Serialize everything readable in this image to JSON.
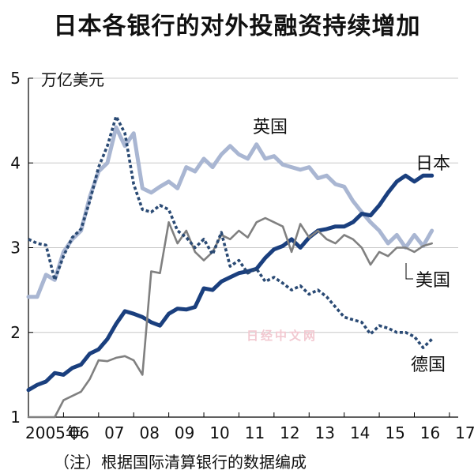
{
  "title": "日本各银行的对外投融资持续增加",
  "note": "（注）根据国际清算银行的数据编成",
  "watermark": "日经中文网",
  "chart_data": {
    "type": "line",
    "ylabel": "万亿美元",
    "ylim": [
      1,
      5
    ],
    "yticks": [
      "1",
      "2",
      "3",
      "4",
      "5"
    ],
    "xlim": [
      2005.0,
      2017.25
    ],
    "xticks": [
      {
        "x": 2005,
        "label": "2005年"
      },
      {
        "x": 2006,
        "label": "06"
      },
      {
        "x": 2007,
        "label": "07"
      },
      {
        "x": 2008,
        "label": "08"
      },
      {
        "x": 2009,
        "label": "09"
      },
      {
        "x": 2010,
        "label": "10"
      },
      {
        "x": 2011,
        "label": "11"
      },
      {
        "x": 2012,
        "label": "12"
      },
      {
        "x": 2013,
        "label": "13"
      },
      {
        "x": 2014,
        "label": "14"
      },
      {
        "x": 2015,
        "label": "15"
      },
      {
        "x": 2016,
        "label": "16"
      },
      {
        "x": 2017,
        "label": "17"
      }
    ],
    "series": [
      {
        "name": "英国",
        "color": "#a9b6d2",
        "style": "thick",
        "points": [
          [
            2005.0,
            2.42
          ],
          [
            2005.25,
            2.42
          ],
          [
            2005.5,
            2.68
          ],
          [
            2005.75,
            2.62
          ],
          [
            2006.0,
            2.95
          ],
          [
            2006.25,
            3.1
          ],
          [
            2006.5,
            3.2
          ],
          [
            2006.75,
            3.6
          ],
          [
            2007.0,
            3.9
          ],
          [
            2007.25,
            4.0
          ],
          [
            2007.5,
            4.42
          ],
          [
            2007.75,
            4.2
          ],
          [
            2008.0,
            4.35
          ],
          [
            2008.25,
            3.7
          ],
          [
            2008.5,
            3.65
          ],
          [
            2008.75,
            3.72
          ],
          [
            2009.0,
            3.78
          ],
          [
            2009.25,
            3.7
          ],
          [
            2009.5,
            3.95
          ],
          [
            2009.75,
            3.9
          ],
          [
            2010.0,
            4.05
          ],
          [
            2010.25,
            3.95
          ],
          [
            2010.5,
            4.1
          ],
          [
            2010.75,
            4.2
          ],
          [
            2011.0,
            4.1
          ],
          [
            2011.25,
            4.05
          ],
          [
            2011.5,
            4.22
          ],
          [
            2011.75,
            4.05
          ],
          [
            2012.0,
            4.08
          ],
          [
            2012.25,
            3.98
          ],
          [
            2012.5,
            3.95
          ],
          [
            2012.75,
            3.92
          ],
          [
            2013.0,
            3.95
          ],
          [
            2013.25,
            3.82
          ],
          [
            2013.5,
            3.85
          ],
          [
            2013.75,
            3.75
          ],
          [
            2014.0,
            3.72
          ],
          [
            2014.25,
            3.55
          ],
          [
            2014.5,
            3.42
          ],
          [
            2014.75,
            3.3
          ],
          [
            2015.0,
            3.2
          ],
          [
            2015.25,
            3.05
          ],
          [
            2015.5,
            3.15
          ],
          [
            2015.75,
            3.0
          ],
          [
            2016.0,
            3.15
          ],
          [
            2016.25,
            3.02
          ],
          [
            2016.5,
            3.2
          ]
        ]
      },
      {
        "name": "日本",
        "color": "#1a3f7e",
        "style": "thick",
        "points": [
          [
            2005.0,
            1.32
          ],
          [
            2005.25,
            1.38
          ],
          [
            2005.5,
            1.42
          ],
          [
            2005.75,
            1.52
          ],
          [
            2006.0,
            1.5
          ],
          [
            2006.25,
            1.58
          ],
          [
            2006.5,
            1.62
          ],
          [
            2006.75,
            1.75
          ],
          [
            2007.0,
            1.8
          ],
          [
            2007.25,
            1.92
          ],
          [
            2007.5,
            2.1
          ],
          [
            2007.75,
            2.25
          ],
          [
            2008.0,
            2.22
          ],
          [
            2008.25,
            2.18
          ],
          [
            2008.5,
            2.12
          ],
          [
            2008.75,
            2.08
          ],
          [
            2009.0,
            2.22
          ],
          [
            2009.25,
            2.28
          ],
          [
            2009.5,
            2.27
          ],
          [
            2009.75,
            2.3
          ],
          [
            2010.0,
            2.52
          ],
          [
            2010.25,
            2.5
          ],
          [
            2010.5,
            2.6
          ],
          [
            2010.75,
            2.65
          ],
          [
            2011.0,
            2.7
          ],
          [
            2011.25,
            2.72
          ],
          [
            2011.5,
            2.75
          ],
          [
            2011.75,
            2.88
          ],
          [
            2012.0,
            2.98
          ],
          [
            2012.25,
            3.02
          ],
          [
            2012.5,
            3.1
          ],
          [
            2012.75,
            3.0
          ],
          [
            2013.0,
            3.12
          ],
          [
            2013.25,
            3.2
          ],
          [
            2013.5,
            3.22
          ],
          [
            2013.75,
            3.25
          ],
          [
            2014.0,
            3.25
          ],
          [
            2014.25,
            3.3
          ],
          [
            2014.5,
            3.4
          ],
          [
            2014.75,
            3.38
          ],
          [
            2015.0,
            3.5
          ],
          [
            2015.25,
            3.65
          ],
          [
            2015.5,
            3.78
          ],
          [
            2015.75,
            3.85
          ],
          [
            2016.0,
            3.78
          ],
          [
            2016.25,
            3.85
          ],
          [
            2016.5,
            3.85
          ]
        ]
      },
      {
        "name": "美国",
        "color": "#808080",
        "style": "thin",
        "points": [
          [
            2005.0,
            1.0
          ],
          [
            2005.25,
            1.0
          ],
          [
            2005.5,
            1.0
          ],
          [
            2005.75,
            1.0
          ],
          [
            2006.0,
            1.2
          ],
          [
            2006.25,
            1.25
          ],
          [
            2006.5,
            1.3
          ],
          [
            2006.75,
            1.45
          ],
          [
            2007.0,
            1.67
          ],
          [
            2007.25,
            1.66
          ],
          [
            2007.5,
            1.7
          ],
          [
            2007.75,
            1.72
          ],
          [
            2008.0,
            1.67
          ],
          [
            2008.25,
            1.5
          ],
          [
            2008.5,
            2.72
          ],
          [
            2008.75,
            2.7
          ],
          [
            2009.0,
            3.3
          ],
          [
            2009.25,
            3.05
          ],
          [
            2009.5,
            3.2
          ],
          [
            2009.75,
            2.95
          ],
          [
            2010.0,
            2.85
          ],
          [
            2010.25,
            2.95
          ],
          [
            2010.5,
            3.15
          ],
          [
            2010.75,
            3.1
          ],
          [
            2011.0,
            3.2
          ],
          [
            2011.25,
            3.12
          ],
          [
            2011.5,
            3.3
          ],
          [
            2011.75,
            3.35
          ],
          [
            2012.0,
            3.3
          ],
          [
            2012.25,
            3.25
          ],
          [
            2012.5,
            2.95
          ],
          [
            2012.75,
            3.28
          ],
          [
            2013.0,
            3.12
          ],
          [
            2013.25,
            3.2
          ],
          [
            2013.5,
            3.1
          ],
          [
            2013.75,
            3.05
          ],
          [
            2014.0,
            3.15
          ],
          [
            2014.25,
            3.1
          ],
          [
            2014.5,
            3.0
          ],
          [
            2014.75,
            2.8
          ],
          [
            2015.0,
            2.95
          ],
          [
            2015.25,
            2.9
          ],
          [
            2015.5,
            3.0
          ],
          [
            2015.75,
            3.0
          ],
          [
            2016.0,
            2.95
          ],
          [
            2016.25,
            3.02
          ],
          [
            2016.5,
            3.05
          ]
        ]
      },
      {
        "name": "德国",
        "color": "#2a4a74",
        "style": "dotted",
        "points": [
          [
            2005.0,
            3.1
          ],
          [
            2005.25,
            3.05
          ],
          [
            2005.5,
            3.03
          ],
          [
            2005.75,
            2.62
          ],
          [
            2006.0,
            2.9
          ],
          [
            2006.25,
            3.12
          ],
          [
            2006.5,
            3.22
          ],
          [
            2006.75,
            3.55
          ],
          [
            2007.0,
            3.95
          ],
          [
            2007.25,
            4.2
          ],
          [
            2007.5,
            4.55
          ],
          [
            2007.75,
            4.35
          ],
          [
            2008.0,
            3.75
          ],
          [
            2008.25,
            3.45
          ],
          [
            2008.5,
            3.42
          ],
          [
            2008.75,
            3.5
          ],
          [
            2009.0,
            3.45
          ],
          [
            2009.25,
            3.2
          ],
          [
            2009.5,
            3.12
          ],
          [
            2009.75,
            3.0
          ],
          [
            2010.0,
            3.1
          ],
          [
            2010.25,
            2.92
          ],
          [
            2010.5,
            3.18
          ],
          [
            2010.75,
            2.78
          ],
          [
            2011.0,
            2.85
          ],
          [
            2011.25,
            2.7
          ],
          [
            2011.5,
            2.75
          ],
          [
            2011.75,
            2.6
          ],
          [
            2012.0,
            2.65
          ],
          [
            2012.25,
            2.58
          ],
          [
            2012.5,
            2.5
          ],
          [
            2012.75,
            2.55
          ],
          [
            2013.0,
            2.45
          ],
          [
            2013.25,
            2.5
          ],
          [
            2013.5,
            2.42
          ],
          [
            2013.75,
            2.3
          ],
          [
            2014.0,
            2.18
          ],
          [
            2014.25,
            2.15
          ],
          [
            2014.5,
            2.12
          ],
          [
            2014.75,
            1.98
          ],
          [
            2015.0,
            2.08
          ],
          [
            2015.25,
            2.05
          ],
          [
            2015.5,
            2.0
          ],
          [
            2015.75,
            2.0
          ],
          [
            2016.0,
            1.95
          ],
          [
            2016.25,
            1.82
          ],
          [
            2016.5,
            1.92
          ]
        ]
      }
    ]
  }
}
